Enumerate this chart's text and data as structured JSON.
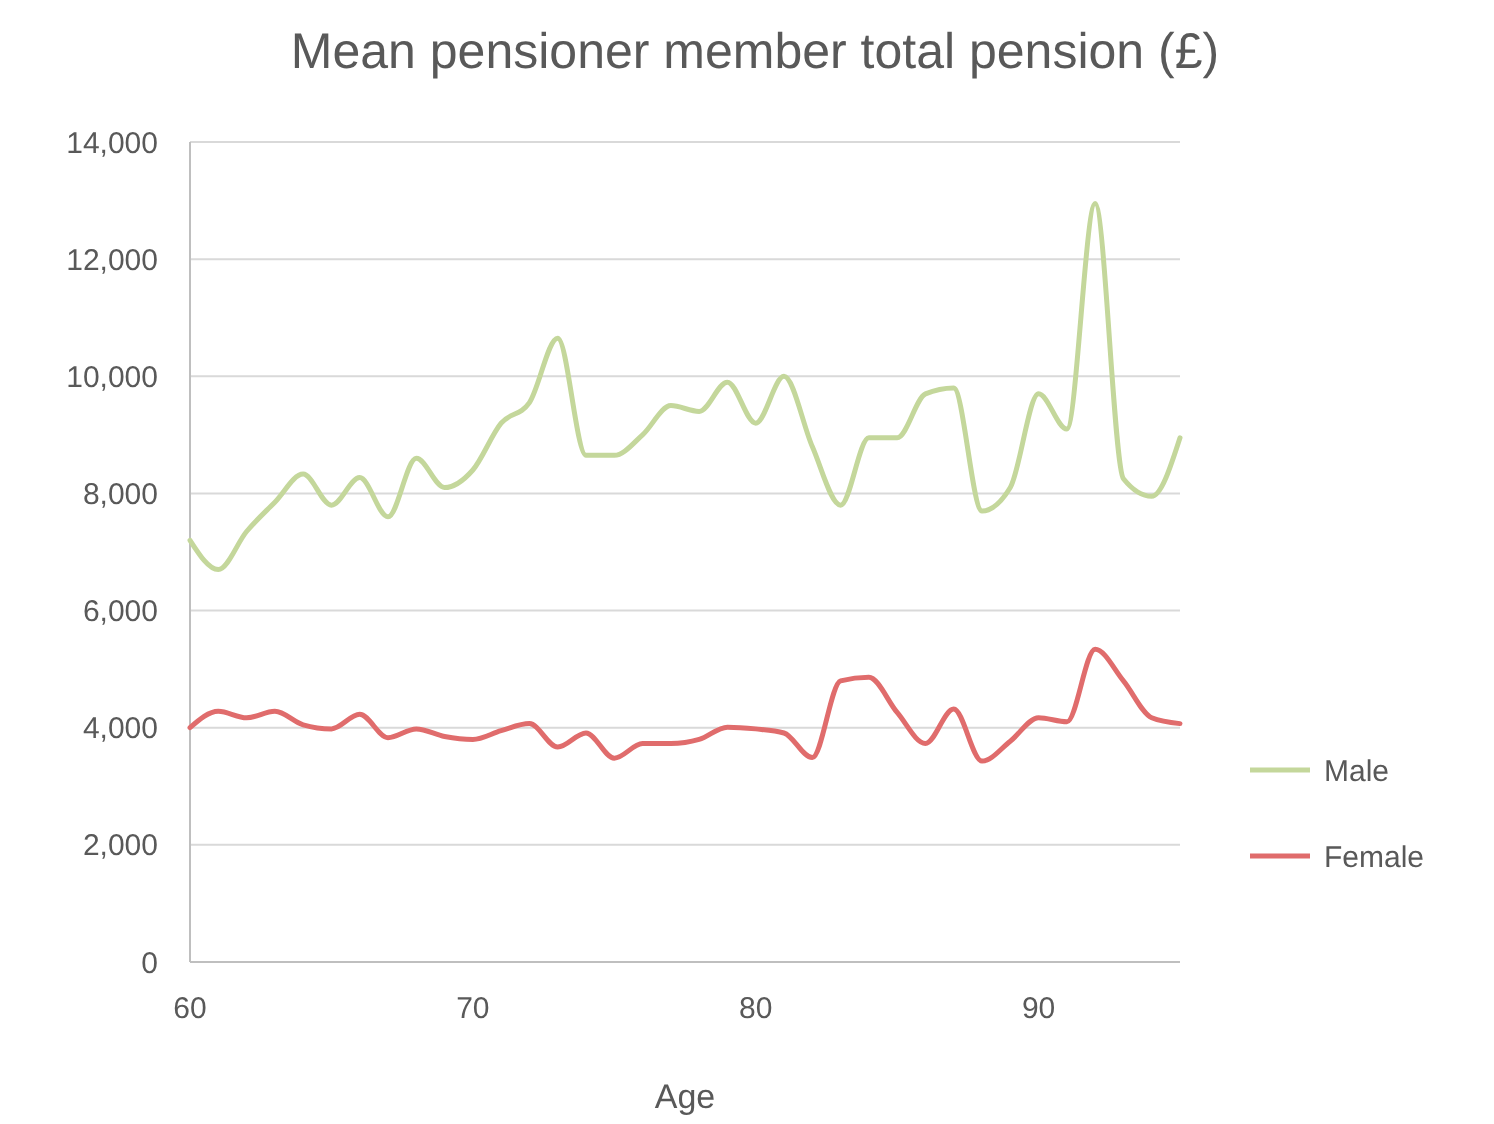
{
  "chart_data": {
    "type": "line",
    "title": "Mean pensioner member  total pension (£)",
    "xlabel": "Age",
    "x": [
      60,
      61,
      62,
      63,
      64,
      65,
      66,
      67,
      68,
      69,
      70,
      71,
      72,
      73,
      74,
      75,
      76,
      77,
      78,
      79,
      80,
      81,
      82,
      83,
      84,
      85,
      86,
      87,
      88,
      89,
      90,
      91,
      92,
      93,
      94,
      95
    ],
    "series": [
      {
        "name": "Male",
        "color": "#c4d79b",
        "values": [
          7200,
          6700,
          7350,
          7850,
          8330,
          7800,
          8270,
          7600,
          8600,
          8100,
          8400,
          9200,
          9550,
          10650,
          8650,
          8650,
          9000,
          9500,
          9400,
          9900,
          9200,
          10000,
          8800,
          7800,
          8950,
          8950,
          9700,
          9800,
          7700,
          8100,
          9700,
          9100,
          12950,
          8250,
          7950,
          8950
        ]
      },
      {
        "name": "Female",
        "color": "#e06c6c",
        "values": [
          4000,
          4280,
          4170,
          4280,
          4050,
          3980,
          4230,
          3830,
          3980,
          3850,
          3800,
          3950,
          4070,
          3670,
          3910,
          3480,
          3730,
          3730,
          3800,
          4010,
          3980,
          3910,
          3490,
          4800,
          4860,
          4260,
          3730,
          4320,
          3430,
          3770,
          4170,
          4100,
          5340,
          4800,
          4170,
          4070
        ]
      }
    ],
    "xlim": [
      60,
      95
    ],
    "xticks": [
      60,
      70,
      80,
      90
    ],
    "ylim": [
      0,
      14000
    ],
    "yticks": [
      {
        "value": 0,
        "label": "0"
      },
      {
        "value": 2000,
        "label": "2,000"
      },
      {
        "value": 4000,
        "label": "4,000"
      },
      {
        "value": 6000,
        "label": "6,000"
      },
      {
        "value": 8000,
        "label": "8,000"
      },
      {
        "value": 10000,
        "label": "10,000"
      },
      {
        "value": 12000,
        "label": "12,000"
      },
      {
        "value": 14000,
        "label": "14,000"
      }
    ],
    "grid": "y",
    "legend": "right",
    "marker": "none",
    "line_style": "solid"
  }
}
